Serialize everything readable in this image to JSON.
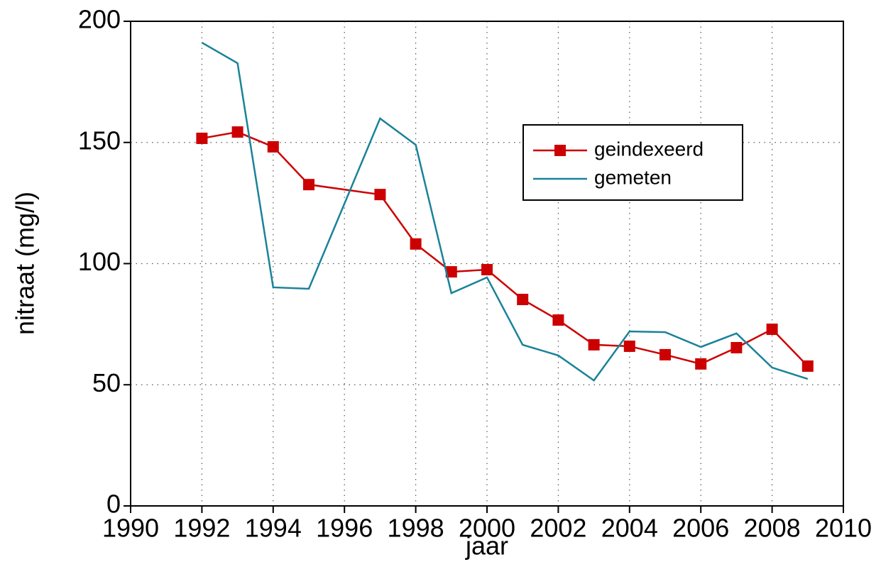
{
  "chart_data": {
    "type": "line",
    "xlabel": "jaar",
    "ylabel": "nitraat (mg/l)",
    "xlim": [
      1990,
      2010
    ],
    "xticks": [
      1990,
      1992,
      1994,
      1996,
      1998,
      2000,
      2002,
      2004,
      2006,
      2008,
      2010
    ],
    "ylim": [
      0,
      200
    ],
    "yticks": [
      0,
      50,
      100,
      150,
      200
    ],
    "grid": true,
    "series": [
      {
        "name": "geindexeerd",
        "color": "#cc0000",
        "marker": "square",
        "x": [
          1992,
          1993,
          1994,
          1995,
          1997,
          1998,
          1999,
          2000,
          2001,
          2002,
          2003,
          2004,
          2005,
          2006,
          2007,
          2008,
          2009
        ],
        "values": [
          151.7,
          154.3,
          148.2,
          132.6,
          128.5,
          108.1,
          96.6,
          97.5,
          85.2,
          76.7,
          66.5,
          65.9,
          62.4,
          58.6,
          65.3,
          72.9,
          57.7
        ]
      },
      {
        "name": "gemeten",
        "color": "#1a8299",
        "x": [
          1992,
          1993,
          1994,
          1995,
          1997,
          1998,
          1999,
          2000,
          2001,
          2002,
          2003,
          2004,
          2005,
          2006,
          2007,
          2008,
          2009
        ],
        "values": [
          191.2,
          182.7,
          90.2,
          89.6,
          159.9,
          149.0,
          87.8,
          94.3,
          66.5,
          62.1,
          51.8,
          72.0,
          71.7,
          65.6,
          71.2,
          57.1,
          52.4
        ]
      }
    ]
  }
}
